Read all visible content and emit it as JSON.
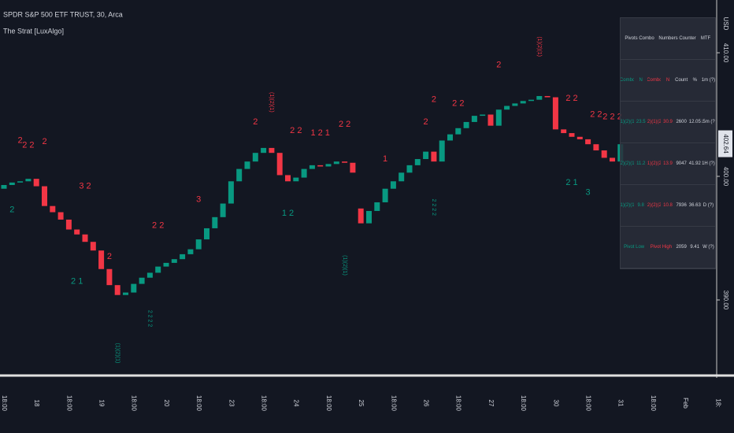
{
  "chart_data": {
    "type": "candlestick",
    "title": "SPDR S&P 500 ETF TRUST, 30, Arca",
    "subtitle": "The Strat [LuxAlgo]",
    "currency": "USD",
    "last_price": {
      "value": 402.64,
      "label": "402.64"
    },
    "ylim": [
      384.33,
      414.27
    ],
    "yticks": [
      {
        "value": 390,
        "label": "390.00"
      },
      {
        "value": 400,
        "label": "400.00"
      },
      {
        "value": 410,
        "label": "410.00"
      }
    ],
    "up_color": "#089981",
    "down_color": "#f23645",
    "categories": [
      "18:00",
      null,
      null,
      null,
      "18",
      null,
      null,
      null,
      "18:00",
      null,
      null,
      null,
      "19",
      null,
      null,
      null,
      "18:00",
      null,
      null,
      null,
      "20",
      null,
      null,
      null,
      "18:00",
      null,
      null,
      null,
      "23",
      null,
      null,
      null,
      "18:00",
      null,
      null,
      null,
      "24",
      null,
      null,
      null,
      "18:00",
      null,
      null,
      null,
      "25",
      null,
      null,
      null,
      "18:00",
      null,
      null,
      null,
      "26",
      null,
      null,
      null,
      "18:00",
      null,
      null,
      null,
      "27",
      null,
      null,
      null,
      "18:00",
      null,
      null,
      null,
      "30",
      null,
      null,
      null,
      "18:00",
      null,
      null,
      null,
      "31",
      null,
      null,
      null,
      "18:00",
      null,
      null,
      null,
      "Feb",
      null,
      null,
      null,
      "18:"
    ],
    "open": [
      399.0,
      399.3,
      399.5,
      399.6,
      399.8,
      399.2,
      397.6,
      397.1,
      396.5,
      395.7,
      395.3,
      394.7,
      394.0,
      392.5,
      391.2,
      390.4,
      390.6,
      391.3,
      391.8,
      392.2,
      392.7,
      393.0,
      393.3,
      393.7,
      394.1,
      394.9,
      395.8,
      396.7,
      397.8,
      399.6,
      400.6,
      401.2,
      401.9,
      402.3,
      401.9,
      400.1,
      399.6,
      399.9,
      400.6,
      400.9,
      400.8,
      401.0,
      401.2,
      401.1,
      397.4,
      396.2,
      397.2,
      397.9,
      399.0,
      399.6,
      400.3,
      400.9,
      401.4,
      402.0,
      401.2,
      402.9,
      403.4,
      403.9,
      404.4,
      404.9,
      405.0,
      404.1,
      405.4,
      405.7,
      405.9,
      406.1,
      406.2,
      406.5,
      406.4,
      403.8,
      403.5,
      403.2,
      403.0,
      402.6,
      402.1,
      401.5,
      401.2,
      null,
      null,
      null,
      null,
      null,
      null,
      null,
      null,
      null,
      null,
      null,
      null
    ],
    "close": [
      399.3,
      399.5,
      399.6,
      399.8,
      399.2,
      397.6,
      397.1,
      396.5,
      395.7,
      395.3,
      394.7,
      394.0,
      392.5,
      391.2,
      390.4,
      390.6,
      391.3,
      391.8,
      392.2,
      392.7,
      393.0,
      393.3,
      393.7,
      394.1,
      394.9,
      395.8,
      396.7,
      397.8,
      399.6,
      400.6,
      401.2,
      401.9,
      402.3,
      401.9,
      400.1,
      399.6,
      399.9,
      400.6,
      400.9,
      400.8,
      401.0,
      401.2,
      401.1,
      400.3,
      396.2,
      397.2,
      397.9,
      399.0,
      399.6,
      400.3,
      400.9,
      401.4,
      402.0,
      401.2,
      402.9,
      403.4,
      403.9,
      404.4,
      404.9,
      405.0,
      404.1,
      405.4,
      405.7,
      405.9,
      406.1,
      406.2,
      406.5,
      406.4,
      403.8,
      403.5,
      403.2,
      403.0,
      402.6,
      402.1,
      401.5,
      401.2,
      402.6,
      null,
      null,
      null,
      null,
      null,
      null,
      null,
      null,
      null,
      null,
      null,
      null
    ],
    "annotations": [
      {
        "text": "2",
        "x": 1,
        "y": 397.3,
        "color": "#089981"
      },
      {
        "text": "2",
        "x": 2,
        "y": 402.9,
        "color": "#f23645"
      },
      {
        "text": "2 2",
        "x": 3,
        "y": 402.5,
        "color": "#f23645"
      },
      {
        "text": "2",
        "x": 5,
        "y": 402.8,
        "color": "#f23645"
      },
      {
        "text": "3 2",
        "x": 10,
        "y": 399.2,
        "color": "#f23645"
      },
      {
        "text": "2 1",
        "x": 9,
        "y": 391.5,
        "color": "#089981"
      },
      {
        "text": "2",
        "x": 13,
        "y": 393.5,
        "color": "#f23645"
      },
      {
        "text": "2 2",
        "x": 19,
        "y": 396.0,
        "color": "#f23645"
      },
      {
        "text": "3",
        "x": 24,
        "y": 398.1,
        "color": "#f23645"
      },
      {
        "text": "2 2 2 2",
        "x": 18,
        "y": 388.5,
        "color": "#089981"
      },
      {
        "text": "2",
        "x": 31,
        "y": 404.4,
        "color": "#f23645"
      },
      {
        "text": "(1)(2)(1)",
        "x": 33,
        "y": 406.0,
        "color": "#f23645"
      },
      {
        "text": "2 2",
        "x": 36,
        "y": 403.7,
        "color": "#f23645"
      },
      {
        "text": "1 2 1",
        "x": 39,
        "y": 403.5,
        "color": "#f23645"
      },
      {
        "text": "2 2",
        "x": 42,
        "y": 404.2,
        "color": "#f23645"
      },
      {
        "text": "1 2",
        "x": 35,
        "y": 397.0,
        "color": "#089981"
      },
      {
        "text": "1",
        "x": 47,
        "y": 401.4,
        "color": "#f23645"
      },
      {
        "text": "2",
        "x": 52,
        "y": 404.4,
        "color": "#f23645"
      },
      {
        "text": "2",
        "x": 53,
        "y": 406.2,
        "color": "#f23645"
      },
      {
        "text": "2 2",
        "x": 56,
        "y": 405.9,
        "color": "#f23645"
      },
      {
        "text": "2 2 2 2",
        "x": 53,
        "y": 397.5,
        "color": "#089981"
      },
      {
        "text": "2",
        "x": 61,
        "y": 409.0,
        "color": "#f23645"
      },
      {
        "text": "(1)(2)(1)",
        "x": 66,
        "y": 410.5,
        "color": "#f23645"
      },
      {
        "text": "2 2",
        "x": 70,
        "y": 406.3,
        "color": "#f23645"
      },
      {
        "text": "2 2",
        "x": 73,
        "y": 405.0,
        "color": "#f23645"
      },
      {
        "text": "2 2 2",
        "x": 75,
        "y": 404.8,
        "color": "#f23645"
      },
      {
        "text": "2 1",
        "x": 70,
        "y": 399.5,
        "color": "#089981"
      },
      {
        "text": "3",
        "x": 72,
        "y": 398.7,
        "color": "#089981"
      },
      {
        "text": "(1)(2)(1)",
        "x": 14,
        "y": 385.7,
        "color": "#089981"
      },
      {
        "text": "(1)(2)(1)",
        "x": 42,
        "y": 392.8,
        "color": "#089981"
      }
    ],
    "table": {
      "header": [
        "Pivots Combo",
        "Numbers Counter",
        "MTF"
      ],
      "rows": [
        [
          "Combo",
          "N",
          "Combo",
          "N",
          "Count",
          "%",
          "1m (?)"
        ],
        [
          "(1)(2)(1)",
          "23.5",
          "(2)(1)(2)",
          "30.9",
          "2600",
          "12.05",
          "15m (?)"
        ],
        [
          "(2)(2)(1)",
          "11.2",
          "(1)(2)(2)",
          "13.9",
          "9047",
          "41.92",
          "1H (?)"
        ],
        [
          "(1)(2)(1)",
          "9.8",
          "(2)(2)(2)",
          "10.8",
          "7936",
          "36.63",
          "D (?)"
        ],
        [
          "Pivot Low",
          "Pivot High",
          "2059",
          "9.41",
          "W (?)"
        ]
      ]
    }
  }
}
